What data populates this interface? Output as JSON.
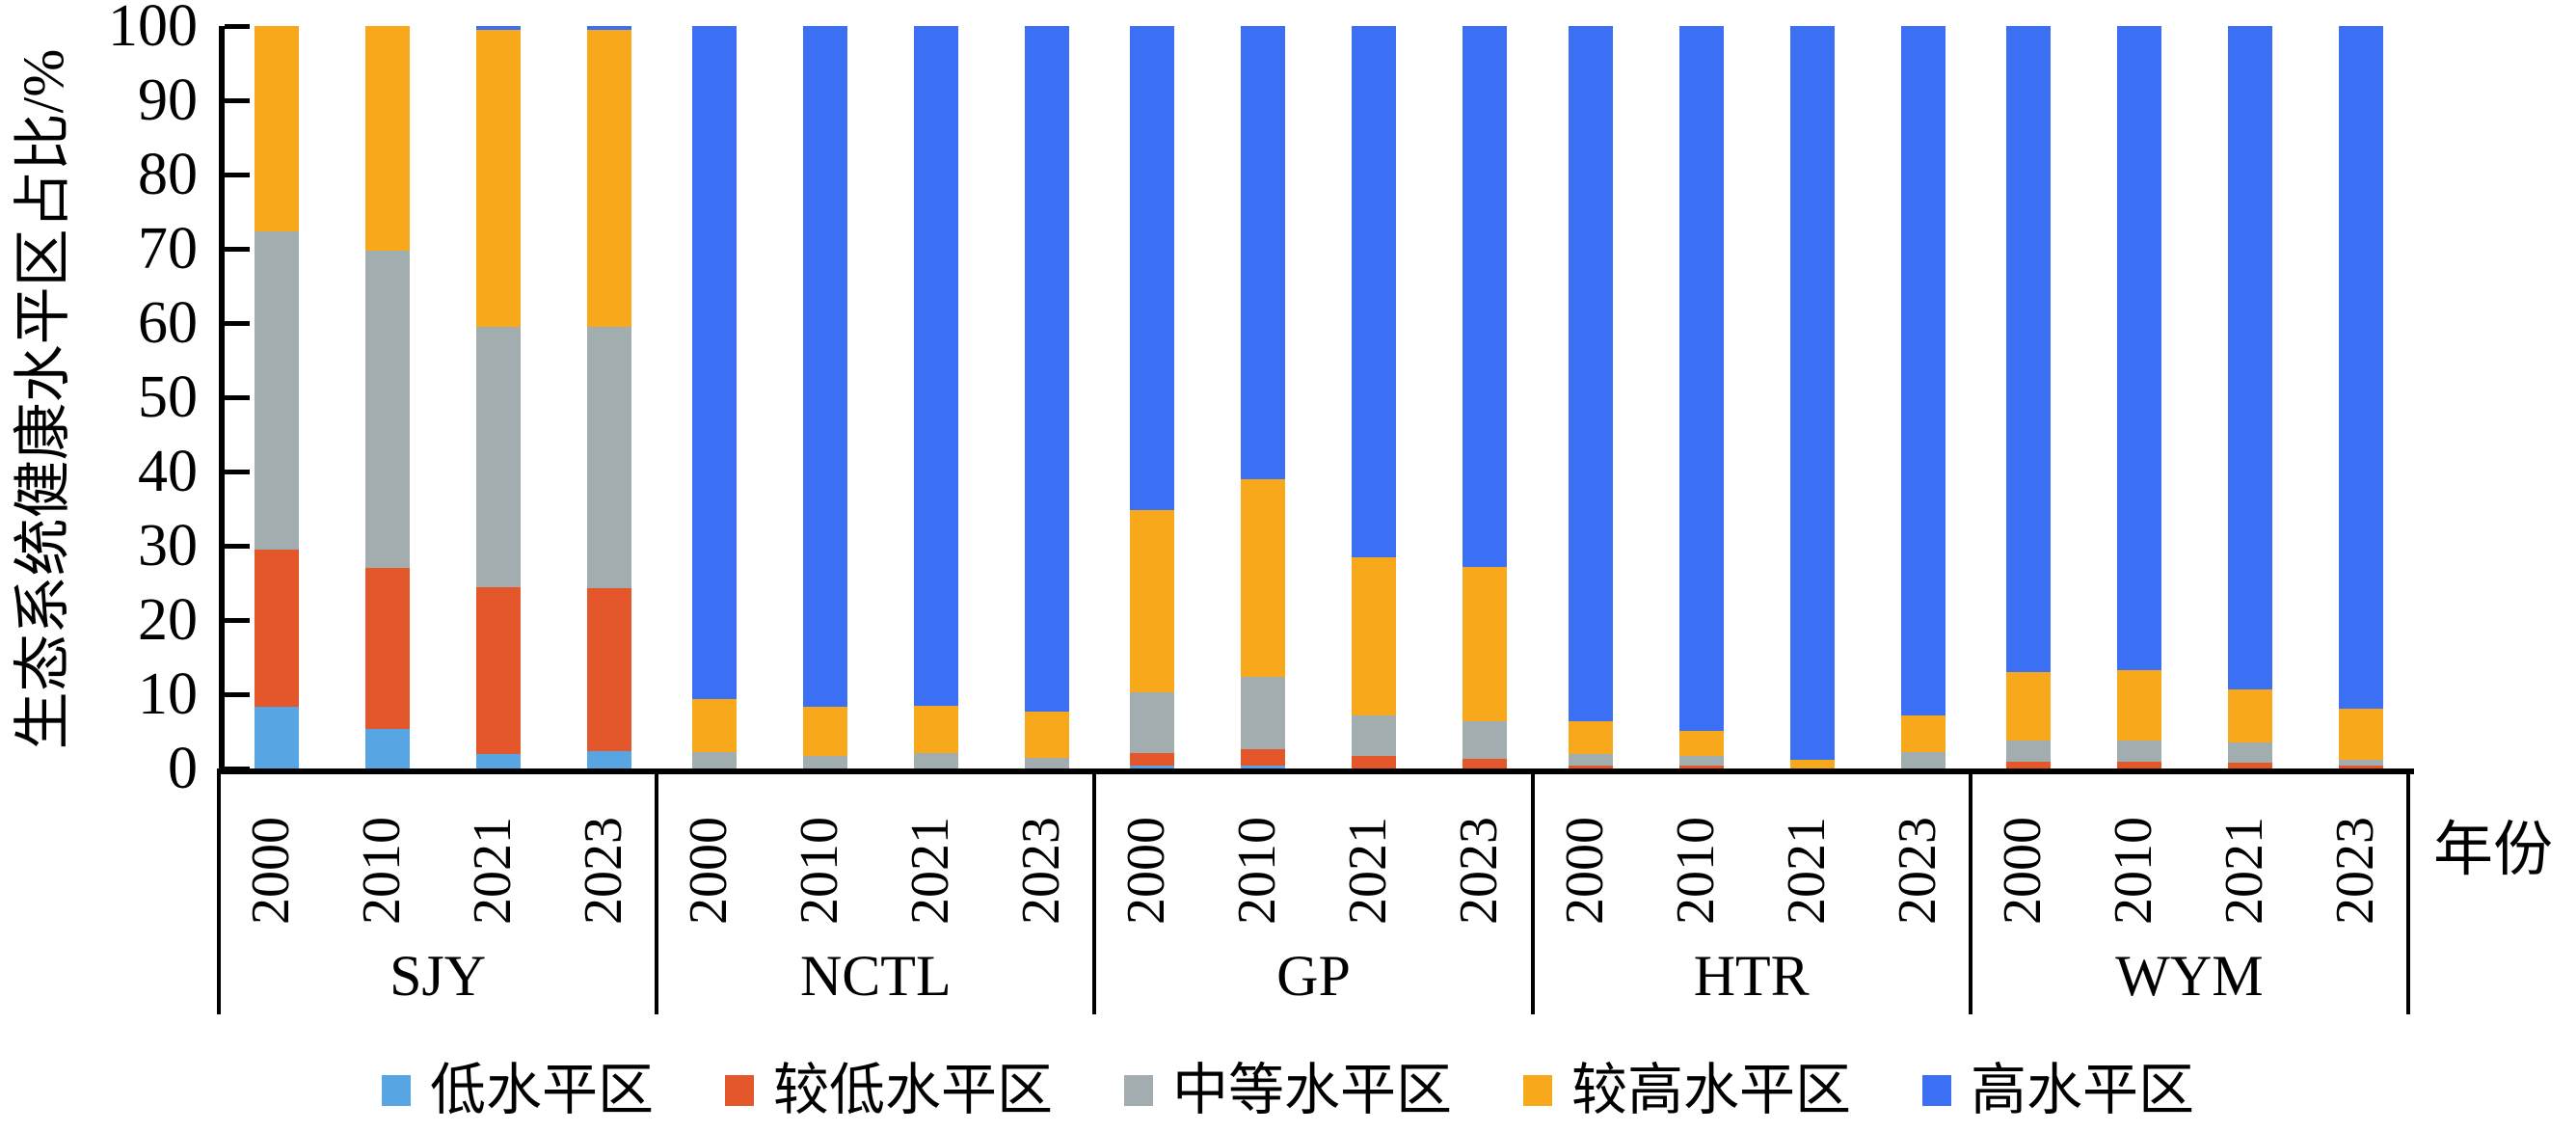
{
  "labels": {
    "y_axis_title": "生态系统健康水平区占比/%",
    "x_axis_title": "年份"
  },
  "chart_data": {
    "type": "bar",
    "stacked": true,
    "orientation": "vertical",
    "ylabel": "生态系统健康水平区占比/%",
    "xlabel": "年份",
    "ylim": [
      0,
      100
    ],
    "yticks": [
      0,
      10,
      20,
      30,
      40,
      50,
      60,
      70,
      80,
      90,
      100
    ],
    "grid": false,
    "legend_position": "bottom",
    "groups": [
      "SJY",
      "NCTL",
      "GP",
      "HTR",
      "WYM"
    ],
    "years": [
      "2000",
      "2010",
      "2021",
      "2023"
    ],
    "categories": [
      "SJY-2000",
      "SJY-2010",
      "SJY-2021",
      "SJY-2023",
      "NCTL-2000",
      "NCTL-2010",
      "NCTL-2021",
      "NCTL-2023",
      "GP-2000",
      "GP-2010",
      "GP-2021",
      "GP-2023",
      "HTR-2000",
      "HTR-2010",
      "HTR-2021",
      "HTR-2023",
      "WYM-2000",
      "WYM-2010",
      "WYM-2021",
      "WYM-2023"
    ],
    "series": [
      {
        "name": "低水平区",
        "color": "#57A5E2",
        "values": [
          8.3,
          5.3,
          2.0,
          2.3,
          0,
          0,
          0,
          0,
          0.4,
          0.4,
          0,
          0,
          0,
          0,
          0,
          0,
          0,
          0,
          0,
          0
        ]
      },
      {
        "name": "较低水平区",
        "color": "#E4572B",
        "values": [
          21.2,
          21.7,
          22.4,
          22.0,
          0,
          0,
          0,
          0,
          1.7,
          2.2,
          1.7,
          1.3,
          0.4,
          0.4,
          0,
          0,
          0.9,
          0.9,
          0.8,
          0.4
        ]
      },
      {
        "name": "中等水平区",
        "color": "#A2ADAF",
        "values": [
          42.8,
          42.7,
          35.1,
          35.2,
          2.2,
          1.7,
          2.1,
          1.4,
          8.1,
          9.7,
          5.5,
          5.1,
          1.5,
          1.3,
          0,
          2.2,
          2.9,
          2.9,
          2.7,
          0.8
        ]
      },
      {
        "name": "较高水平区",
        "color": "#F7A81B",
        "values": [
          27.7,
          30.3,
          40.0,
          40.0,
          7.2,
          6.6,
          6.4,
          6.3,
          24.6,
          26.6,
          21.3,
          20.8,
          4.5,
          3.4,
          1.2,
          5.0,
          9.2,
          9.4,
          7.2,
          6.9
        ]
      },
      {
        "name": "高水平区",
        "color": "#3B70F5",
        "values": [
          0,
          0,
          0.5,
          0.5,
          90.6,
          91.7,
          91.5,
          92.3,
          65.2,
          61.1,
          71.5,
          72.8,
          93.6,
          94.9,
          98.8,
          92.8,
          87.0,
          86.8,
          89.3,
          91.9
        ]
      }
    ],
    "axis_color": "#000000"
  }
}
